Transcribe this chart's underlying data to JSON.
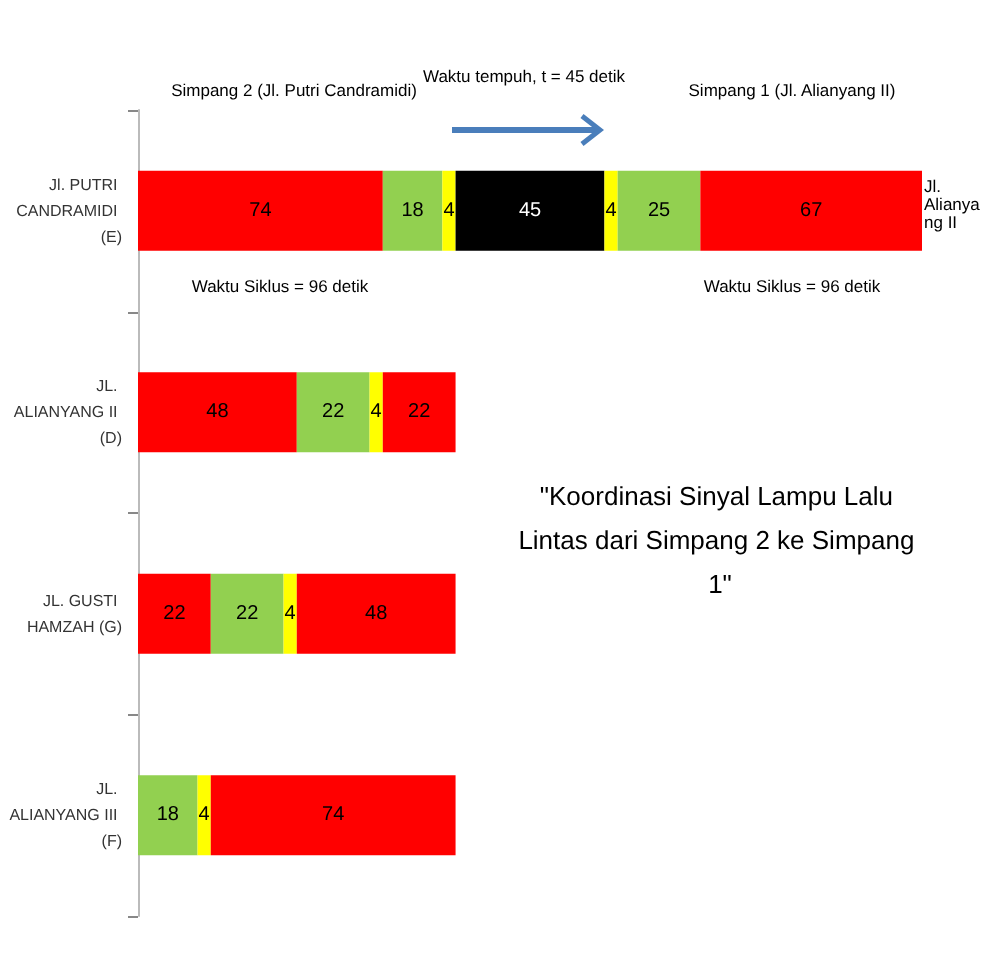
{
  "chart_data": {
    "type": "bar",
    "orientation": "horizontal",
    "stacked": true,
    "data_labels": true,
    "tick_labels": "y",
    "title": "\"Koordinasi Sinyal Lampu Lalu Lintas dari Simpang 2 ke Simpang 1\"",
    "categories": [
      "Jl. PUTRI CANDRAMIDI (E)",
      "JL. ALIANYANG II (D)",
      "JL. GUSTI HAMZAH (G)",
      "JL. ALIANYANG III (F)"
    ],
    "series": [
      {
        "values": [
          74,
          48,
          22,
          18
        ],
        "colors": [
          "#ff0000",
          "#ff0000",
          "#ff0000",
          "#92d050"
        ]
      },
      {
        "values": [
          18,
          22,
          22,
          4
        ],
        "colors": [
          "#92d050",
          "#92d050",
          "#92d050",
          "#ffff00"
        ]
      },
      {
        "values": [
          4,
          4,
          4,
          74
        ],
        "colors": [
          "#ffff00",
          "#ffff00",
          "#ffff00",
          "#ff0000"
        ]
      },
      {
        "values": [
          45,
          22,
          48,
          null
        ],
        "colors": [
          "#000000",
          "#ff0000",
          "#ff0000",
          null
        ]
      },
      {
        "values": [
          4,
          null,
          null,
          null
        ],
        "colors": [
          "#ffff00",
          null,
          null,
          null
        ]
      },
      {
        "values": [
          25,
          null,
          null,
          null
        ],
        "colors": [
          "#92d050",
          null,
          null,
          null
        ]
      },
      {
        "values": [
          67,
          null,
          null,
          null
        ],
        "colors": [
          "#ff0000",
          null,
          null,
          null
        ]
      }
    ],
    "annotations": [
      "Simpang 2 (Jl. Putri Candramidi)",
      "Waktu tempuh, t = 45 detik",
      "Simpang 1 (Jl. Alianyang II)",
      "Jl. Alianyang II",
      "Waktu Siklus = 96 detik",
      "Waktu Siklus = 96 detik"
    ]
  }
}
